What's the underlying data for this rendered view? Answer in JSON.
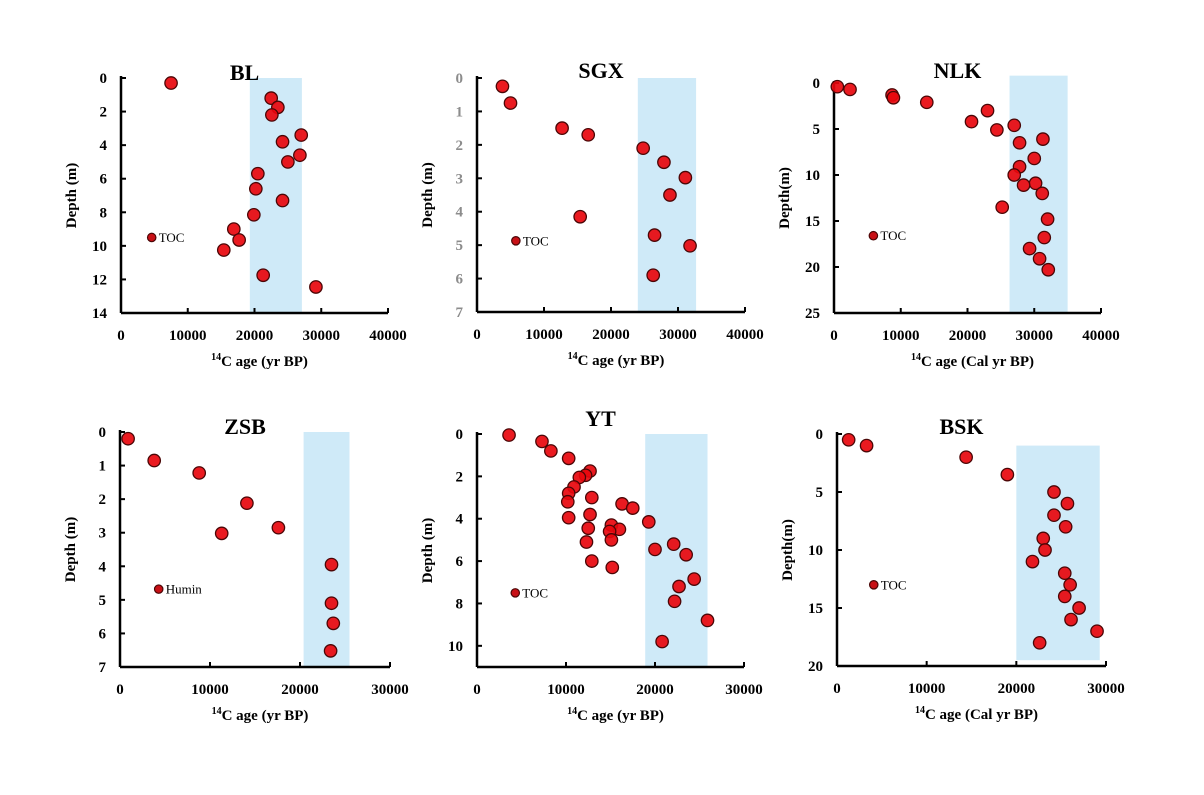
{
  "chart_data": [
    {
      "id": "BL",
      "type": "scatter",
      "title": "BL",
      "xlabel_sup": "14",
      "xlabel": "C age (yr BP)",
      "ylabel": "Depth (m)",
      "xlim": [
        0,
        40000
      ],
      "ylim": [
        0,
        14
      ],
      "y_inverted": true,
      "xticks": [
        0,
        10000,
        20000,
        30000,
        40000
      ],
      "yticks": [
        0,
        2,
        4,
        6,
        8,
        10,
        12,
        14
      ],
      "ytick_color": "#000000",
      "band": {
        "x": [
          19300,
          27100
        ],
        "y": [
          0,
          14
        ]
      },
      "annotation": {
        "label": "TOC",
        "x": 4600,
        "y": 9.5
      },
      "points": [
        [
          7500,
          0.3
        ],
        [
          22500,
          1.2
        ],
        [
          23500,
          1.75
        ],
        [
          22600,
          2.2
        ],
        [
          27000,
          3.4
        ],
        [
          24200,
          3.8
        ],
        [
          26800,
          4.6
        ],
        [
          25000,
          5.0
        ],
        [
          20500,
          5.7
        ],
        [
          20200,
          6.6
        ],
        [
          24200,
          7.3
        ],
        [
          19900,
          8.15
        ],
        [
          16900,
          9.0
        ],
        [
          17700,
          9.65
        ],
        [
          15400,
          10.25
        ],
        [
          21300,
          11.75
        ],
        [
          29200,
          12.45
        ]
      ]
    },
    {
      "id": "SGX",
      "type": "scatter",
      "title": "SGX",
      "xlabel_sup": "14",
      "xlabel": "C age (yr BP)",
      "ylabel": "Depth (m)",
      "xlim": [
        0,
        40000
      ],
      "ylim": [
        0,
        7
      ],
      "y_inverted": true,
      "xticks": [
        0,
        10000,
        20000,
        30000,
        40000
      ],
      "yticks": [
        0,
        1,
        2,
        3,
        4,
        5,
        6,
        7
      ],
      "ytick_color": "#8c8c8c",
      "band": {
        "x": [
          24000,
          32700
        ],
        "y": [
          0,
          7
        ]
      },
      "annotation": {
        "label": "TOC",
        "x": 5800,
        "y": 4.87
      },
      "points": [
        [
          3800,
          0.25
        ],
        [
          5000,
          0.75
        ],
        [
          12700,
          1.5
        ],
        [
          16600,
          1.7
        ],
        [
          24800,
          2.1
        ],
        [
          27900,
          2.52
        ],
        [
          31100,
          2.98
        ],
        [
          28800,
          3.5
        ],
        [
          15400,
          4.15
        ],
        [
          26500,
          4.7
        ],
        [
          31800,
          5.02
        ],
        [
          26300,
          5.9
        ]
      ]
    },
    {
      "id": "NLK",
      "type": "scatter",
      "title": "NLK",
      "xlabel_sup": "14",
      "xlabel": "C age (Cal yr BP)",
      "ylabel": "Depth(m)",
      "xlim": [
        0,
        40000
      ],
      "ylim": [
        0,
        25
      ],
      "y_inverted": true,
      "xticks": [
        0,
        10000,
        20000,
        30000,
        40000
      ],
      "yticks": [
        0,
        5,
        10,
        15,
        20,
        25
      ],
      "ytick_color": "#000000",
      "band": {
        "x": [
          26300,
          35000
        ],
        "y": [
          -0.8,
          25
        ]
      },
      "annotation": {
        "label": "TOC",
        "x": 5900,
        "y": 16.6
      },
      "points": [
        [
          500,
          0.4
        ],
        [
          2400,
          0.7
        ],
        [
          8700,
          1.3
        ],
        [
          8900,
          1.6
        ],
        [
          13900,
          2.1
        ],
        [
          23000,
          3.0
        ],
        [
          20600,
          4.2
        ],
        [
          24400,
          5.1
        ],
        [
          27000,
          4.6
        ],
        [
          31300,
          6.1
        ],
        [
          27800,
          6.5
        ],
        [
          30000,
          8.2
        ],
        [
          27800,
          9.1
        ],
        [
          27000,
          10.0
        ],
        [
          30200,
          10.9
        ],
        [
          28400,
          11.1
        ],
        [
          31200,
          12.0
        ],
        [
          25200,
          13.5
        ],
        [
          32000,
          14.8
        ],
        [
          31500,
          16.8
        ],
        [
          29300,
          18.0
        ],
        [
          30800,
          19.1
        ],
        [
          32100,
          20.3
        ]
      ]
    },
    {
      "id": "ZSB",
      "type": "scatter",
      "title": "ZSB",
      "xlabel_sup": "14",
      "xlabel": "C age (yr BP)",
      "ylabel": "Depth (m)",
      "xlim": [
        0,
        30000
      ],
      "ylim": [
        0,
        7
      ],
      "y_inverted": true,
      "xticks": [
        0,
        10000,
        20000,
        30000
      ],
      "yticks": [
        0,
        1,
        2,
        3,
        4,
        5,
        6,
        7
      ],
      "ytick_color": "#000000",
      "band": {
        "x": [
          20400,
          25500
        ],
        "y": [
          0,
          7
        ]
      },
      "annotation": {
        "label": "Humin",
        "x": 4300,
        "y": 4.68
      },
      "points": [
        [
          900,
          0.2
        ],
        [
          3800,
          0.85
        ],
        [
          8800,
          1.22
        ],
        [
          14100,
          2.12
        ],
        [
          11300,
          3.02
        ],
        [
          17600,
          2.85
        ],
        [
          23500,
          3.95
        ],
        [
          23500,
          5.1
        ],
        [
          23700,
          5.7
        ],
        [
          23400,
          6.52
        ]
      ]
    },
    {
      "id": "YT",
      "type": "scatter",
      "title": "YT",
      "xlabel_sup": "14",
      "xlabel": "C age (yr BP)",
      "ylabel": "Depth (m)",
      "xlim": [
        0,
        30000
      ],
      "ylim": [
        0,
        11
      ],
      "y_inverted": true,
      "xticks": [
        0,
        10000,
        20000,
        30000
      ],
      "yticks": [
        0,
        2,
        4,
        6,
        8,
        10
      ],
      "ytick_color": "#000000",
      "band": {
        "x": [
          18900,
          25900
        ],
        "y": [
          0,
          11
        ]
      },
      "annotation": {
        "label": "TOC",
        "x": 4300,
        "y": 7.5
      },
      "points": [
        [
          3600,
          0.05
        ],
        [
          7300,
          0.35
        ],
        [
          8300,
          0.8
        ],
        [
          10300,
          1.15
        ],
        [
          12700,
          1.75
        ],
        [
          12200,
          1.95
        ],
        [
          11500,
          2.05
        ],
        [
          10900,
          2.5
        ],
        [
          10300,
          2.8
        ],
        [
          10200,
          3.2
        ],
        [
          12900,
          3.0
        ],
        [
          16300,
          3.3
        ],
        [
          17500,
          3.5
        ],
        [
          10300,
          3.95
        ],
        [
          12700,
          3.8
        ],
        [
          12500,
          4.45
        ],
        [
          15100,
          4.3
        ],
        [
          16000,
          4.5
        ],
        [
          14900,
          4.6
        ],
        [
          15100,
          5.0
        ],
        [
          12300,
          5.1
        ],
        [
          12900,
          6.0
        ],
        [
          15200,
          6.3
        ],
        [
          19300,
          4.15
        ],
        [
          20000,
          5.45
        ],
        [
          22100,
          5.2
        ],
        [
          23500,
          5.7
        ],
        [
          24400,
          6.85
        ],
        [
          22700,
          7.2
        ],
        [
          22200,
          7.9
        ],
        [
          25900,
          8.8
        ],
        [
          20800,
          9.8
        ]
      ]
    },
    {
      "id": "BSK",
      "type": "scatter",
      "title": "BSK",
      "xlabel_sup": "14",
      "xlabel": "C age (Cal yr BP)",
      "ylabel": "Depth(m)",
      "xlim": [
        0,
        30000
      ],
      "ylim": [
        0,
        20
      ],
      "y_inverted": true,
      "xticks": [
        0,
        10000,
        20000,
        30000
      ],
      "yticks": [
        0,
        5,
        10,
        15,
        20
      ],
      "ytick_color": "#000000",
      "band": {
        "x": [
          20000,
          29300
        ],
        "y": [
          1.0,
          19.5
        ]
      },
      "annotation": {
        "label": "TOC",
        "x": 4100,
        "y": 13.0
      },
      "points": [
        [
          1300,
          0.5
        ],
        [
          3300,
          1.0
        ],
        [
          14400,
          2.0
        ],
        [
          19000,
          3.5
        ],
        [
          24200,
          5.0
        ],
        [
          25700,
          6.0
        ],
        [
          24200,
          7.0
        ],
        [
          25500,
          8.0
        ],
        [
          23000,
          9.0
        ],
        [
          23200,
          10.0
        ],
        [
          21800,
          11.0
        ],
        [
          25400,
          12.0
        ],
        [
          26000,
          13.0
        ],
        [
          25400,
          14.0
        ],
        [
          27000,
          15.0
        ],
        [
          26100,
          16.0
        ],
        [
          29000,
          17.0
        ],
        [
          22600,
          18.0
        ]
      ]
    }
  ],
  "colors": {
    "marker_fill": "#e8070d",
    "marker_stroke": "#4a0606",
    "band_fill": "#cfeaf8",
    "axis": "#000000"
  }
}
